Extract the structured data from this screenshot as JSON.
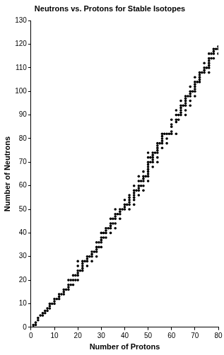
{
  "chart_data": {
    "type": "scatter",
    "title": "Neutrons vs. Protons for Stable Isotopes",
    "x_label": "Number of Protons",
    "y_label": "Number of Neutrons",
    "x": [
      1,
      1,
      2,
      2,
      3,
      3,
      4,
      5,
      5,
      6,
      6,
      7,
      7,
      8,
      8,
      8,
      9,
      10,
      10,
      10,
      11,
      12,
      12,
      12,
      13,
      14,
      14,
      14,
      15,
      16,
      16,
      16,
      16,
      17,
      17,
      18,
      18,
      18,
      19,
      19,
      20,
      20,
      20,
      20,
      20,
      20,
      21,
      22,
      22,
      22,
      22,
      22,
      23,
      24,
      24,
      24,
      24,
      25,
      26,
      26,
      26,
      26,
      27,
      28,
      28,
      28,
      28,
      28,
      29,
      29,
      30,
      30,
      30,
      30,
      30,
      31,
      31,
      32,
      32,
      32,
      32,
      33,
      34,
      34,
      34,
      34,
      34,
      35,
      35,
      36,
      36,
      36,
      36,
      36,
      36,
      37,
      38,
      38,
      38,
      38,
      39,
      40,
      40,
      40,
      40,
      41,
      42,
      42,
      42,
      42,
      42,
      42,
      44,
      44,
      44,
      44,
      44,
      44,
      44,
      45,
      46,
      46,
      46,
      46,
      46,
      46,
      47,
      47,
      48,
      48,
      48,
      48,
      48,
      48,
      49,
      50,
      50,
      50,
      50,
      50,
      50,
      50,
      50,
      50,
      50,
      51,
      51,
      52,
      52,
      52,
      52,
      52,
      52,
      53,
      54,
      54,
      54,
      54,
      54,
      54,
      54,
      55,
      56,
      56,
      56,
      56,
      56,
      56,
      57,
      58,
      58,
      58,
      59,
      60,
      60,
      60,
      60,
      60,
      62,
      62,
      62,
      62,
      62,
      63,
      63,
      64,
      64,
      64,
      64,
      64,
      64,
      65,
      66,
      66,
      66,
      66,
      66,
      66,
      66,
      67,
      68,
      68,
      68,
      68,
      68,
      68,
      69,
      70,
      70,
      70,
      70,
      70,
      70,
      70,
      71,
      72,
      72,
      72,
      72,
      72,
      73,
      74,
      74,
      74,
      74,
      75,
      76,
      76,
      76,
      76,
      76,
      76,
      76,
      77,
      77,
      78,
      78,
      78,
      78,
      79,
      80,
      80,
      80
    ],
    "values": [
      0,
      1,
      1,
      2,
      3,
      4,
      5,
      5,
      6,
      6,
      7,
      7,
      8,
      8,
      9,
      10,
      10,
      10,
      11,
      12,
      12,
      12,
      13,
      14,
      14,
      14,
      15,
      16,
      16,
      16,
      17,
      18,
      20,
      18,
      20,
      18,
      20,
      22,
      20,
      22,
      20,
      22,
      23,
      24,
      26,
      28,
      24,
      24,
      25,
      26,
      27,
      28,
      28,
      26,
      28,
      29,
      30,
      30,
      28,
      30,
      31,
      32,
      32,
      30,
      32,
      33,
      34,
      36,
      34,
      36,
      34,
      36,
      37,
      38,
      40,
      38,
      40,
      38,
      40,
      41,
      42,
      42,
      40,
      42,
      43,
      44,
      46,
      44,
      46,
      42,
      44,
      46,
      47,
      48,
      50,
      48,
      46,
      48,
      49,
      50,
      50,
      50,
      51,
      52,
      54,
      52,
      50,
      52,
      53,
      54,
      55,
      56,
      52,
      54,
      55,
      56,
      57,
      58,
      60,
      58,
      56,
      58,
      59,
      60,
      62,
      64,
      60,
      62,
      58,
      60,
      62,
      63,
      64,
      66,
      64,
      62,
      64,
      65,
      66,
      67,
      68,
      69,
      70,
      72,
      74,
      70,
      72,
      68,
      70,
      71,
      72,
      73,
      74,
      74,
      70,
      72,
      74,
      75,
      76,
      77,
      78,
      78,
      76,
      78,
      79,
      80,
      81,
      82,
      82,
      78,
      80,
      82,
      82,
      82,
      83,
      85,
      86,
      88,
      82,
      87,
      88,
      90,
      92,
      88,
      90,
      90,
      91,
      92,
      93,
      94,
      96,
      94,
      90,
      92,
      94,
      95,
      96,
      97,
      98,
      98,
      94,
      96,
      98,
      99,
      100,
      102,
      100,
      98,
      100,
      101,
      102,
      103,
      104,
      106,
      104,
      104,
      105,
      106,
      107,
      108,
      108,
      108,
      109,
      110,
      112,
      110,
      108,
      110,
      111,
      112,
      113,
      114,
      116,
      114,
      116,
      114,
      116,
      117,
      118,
      118,
      116,
      118,
      119
    ],
    "color": "#000000",
    "marker": "circle",
    "xlim": [
      0,
      80
    ],
    "xticks": [
      0,
      10,
      20,
      30,
      40,
      50,
      60,
      70,
      80
    ],
    "ylim": [
      0,
      130
    ],
    "yticks": [
      0,
      10,
      20,
      30,
      40,
      50,
      60,
      70,
      80,
      90,
      100,
      110,
      120,
      130
    ],
    "grid": false
  }
}
